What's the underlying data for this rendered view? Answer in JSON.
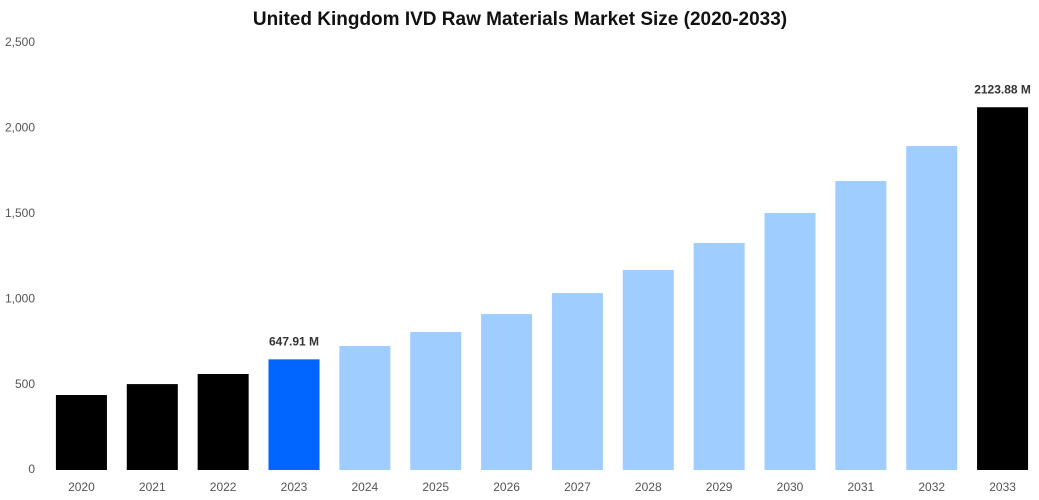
{
  "chart_data": {
    "type": "bar",
    "title": "United Kingdom IVD Raw Materials Market Size (2020-2033)",
    "categories": [
      "2020",
      "2021",
      "2022",
      "2023",
      "2024",
      "2025",
      "2026",
      "2027",
      "2028",
      "2029",
      "2030",
      "2031",
      "2032",
      "2033"
    ],
    "values": [
      439,
      503,
      562,
      647.91,
      726,
      808,
      913,
      1036,
      1171,
      1329,
      1505,
      1692,
      1897,
      2123.88
    ],
    "value_labels": [
      null,
      null,
      null,
      "647.91 M",
      null,
      null,
      null,
      null,
      null,
      null,
      null,
      null,
      null,
      "2123.88 M"
    ],
    "colors": [
      "#000000",
      "#000000",
      "#000000",
      "#0066ff",
      "#a0cdff",
      "#a0cdff",
      "#a0cdff",
      "#a0cdff",
      "#a0cdff",
      "#a0cdff",
      "#a0cdff",
      "#a0cdff",
      "#a0cdff",
      "#000000"
    ],
    "ylim": [
      0,
      2500
    ],
    "yticks": [
      0,
      500,
      {
        "value": 1000,
        "label": "1,000"
      },
      {
        "value": 1500,
        "label": "1,500"
      },
      {
        "value": 2000,
        "label": "2,000"
      },
      {
        "value": 2500,
        "label": "2,500"
      }
    ],
    "grid": false
  }
}
